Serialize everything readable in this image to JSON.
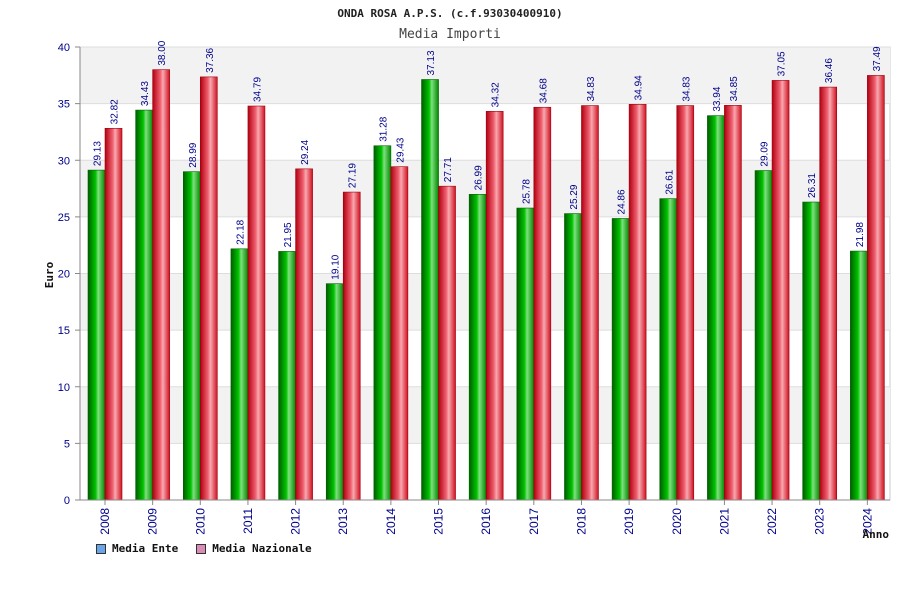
{
  "chart_data": {
    "type": "bar",
    "title": "ONDA ROSA A.P.S. (c.f.93030400910)",
    "subtitle": "Media Importi",
    "xlabel": "Anno",
    "ylabel": "Euro",
    "ylim": [
      0,
      40
    ],
    "yticks": [
      0,
      5,
      10,
      15,
      20,
      25,
      30,
      35,
      40
    ],
    "categories": [
      "2008",
      "2009",
      "2010",
      "2011",
      "2012",
      "2013",
      "2014",
      "2015",
      "2016",
      "2017",
      "2018",
      "2019",
      "2020",
      "2021",
      "2022",
      "2023",
      "2024"
    ],
    "series": [
      {
        "name": "Media Ente",
        "color": "#00b000",
        "legend_color": "#6aa5e8",
        "values": [
          29.13,
          34.43,
          28.99,
          22.18,
          21.95,
          19.1,
          31.28,
          37.13,
          26.99,
          25.78,
          25.29,
          24.86,
          26.61,
          33.94,
          29.09,
          26.31,
          21.98
        ],
        "labels": [
          "29.13",
          "34.43",
          "28.99",
          "22.18",
          "21.95",
          "19.10",
          "31.28",
          "37.13",
          "26.99",
          "25.78",
          "25.29",
          "24.86",
          "26.61",
          "33.94",
          "29.09",
          "26.31",
          "21.98"
        ]
      },
      {
        "name": "Media Nazionale",
        "color": "#e0202a",
        "legend_color": "#d98cb5",
        "values": [
          32.82,
          38.0,
          37.36,
          34.79,
          29.24,
          27.19,
          29.43,
          27.71,
          34.32,
          34.68,
          34.83,
          34.94,
          34.83,
          34.85,
          37.05,
          36.46,
          37.49
        ],
        "labels": [
          "32.82",
          "38.00",
          "37.36",
          "34.79",
          "29.24",
          "27.19",
          "29.43",
          "27.71",
          "34.32",
          "34.68",
          "34.83",
          "34.94",
          "34.83",
          "34.85",
          "37.05",
          "36.46",
          "37.49"
        ]
      }
    ],
    "grid": true,
    "legend_position": "bottom-left"
  }
}
